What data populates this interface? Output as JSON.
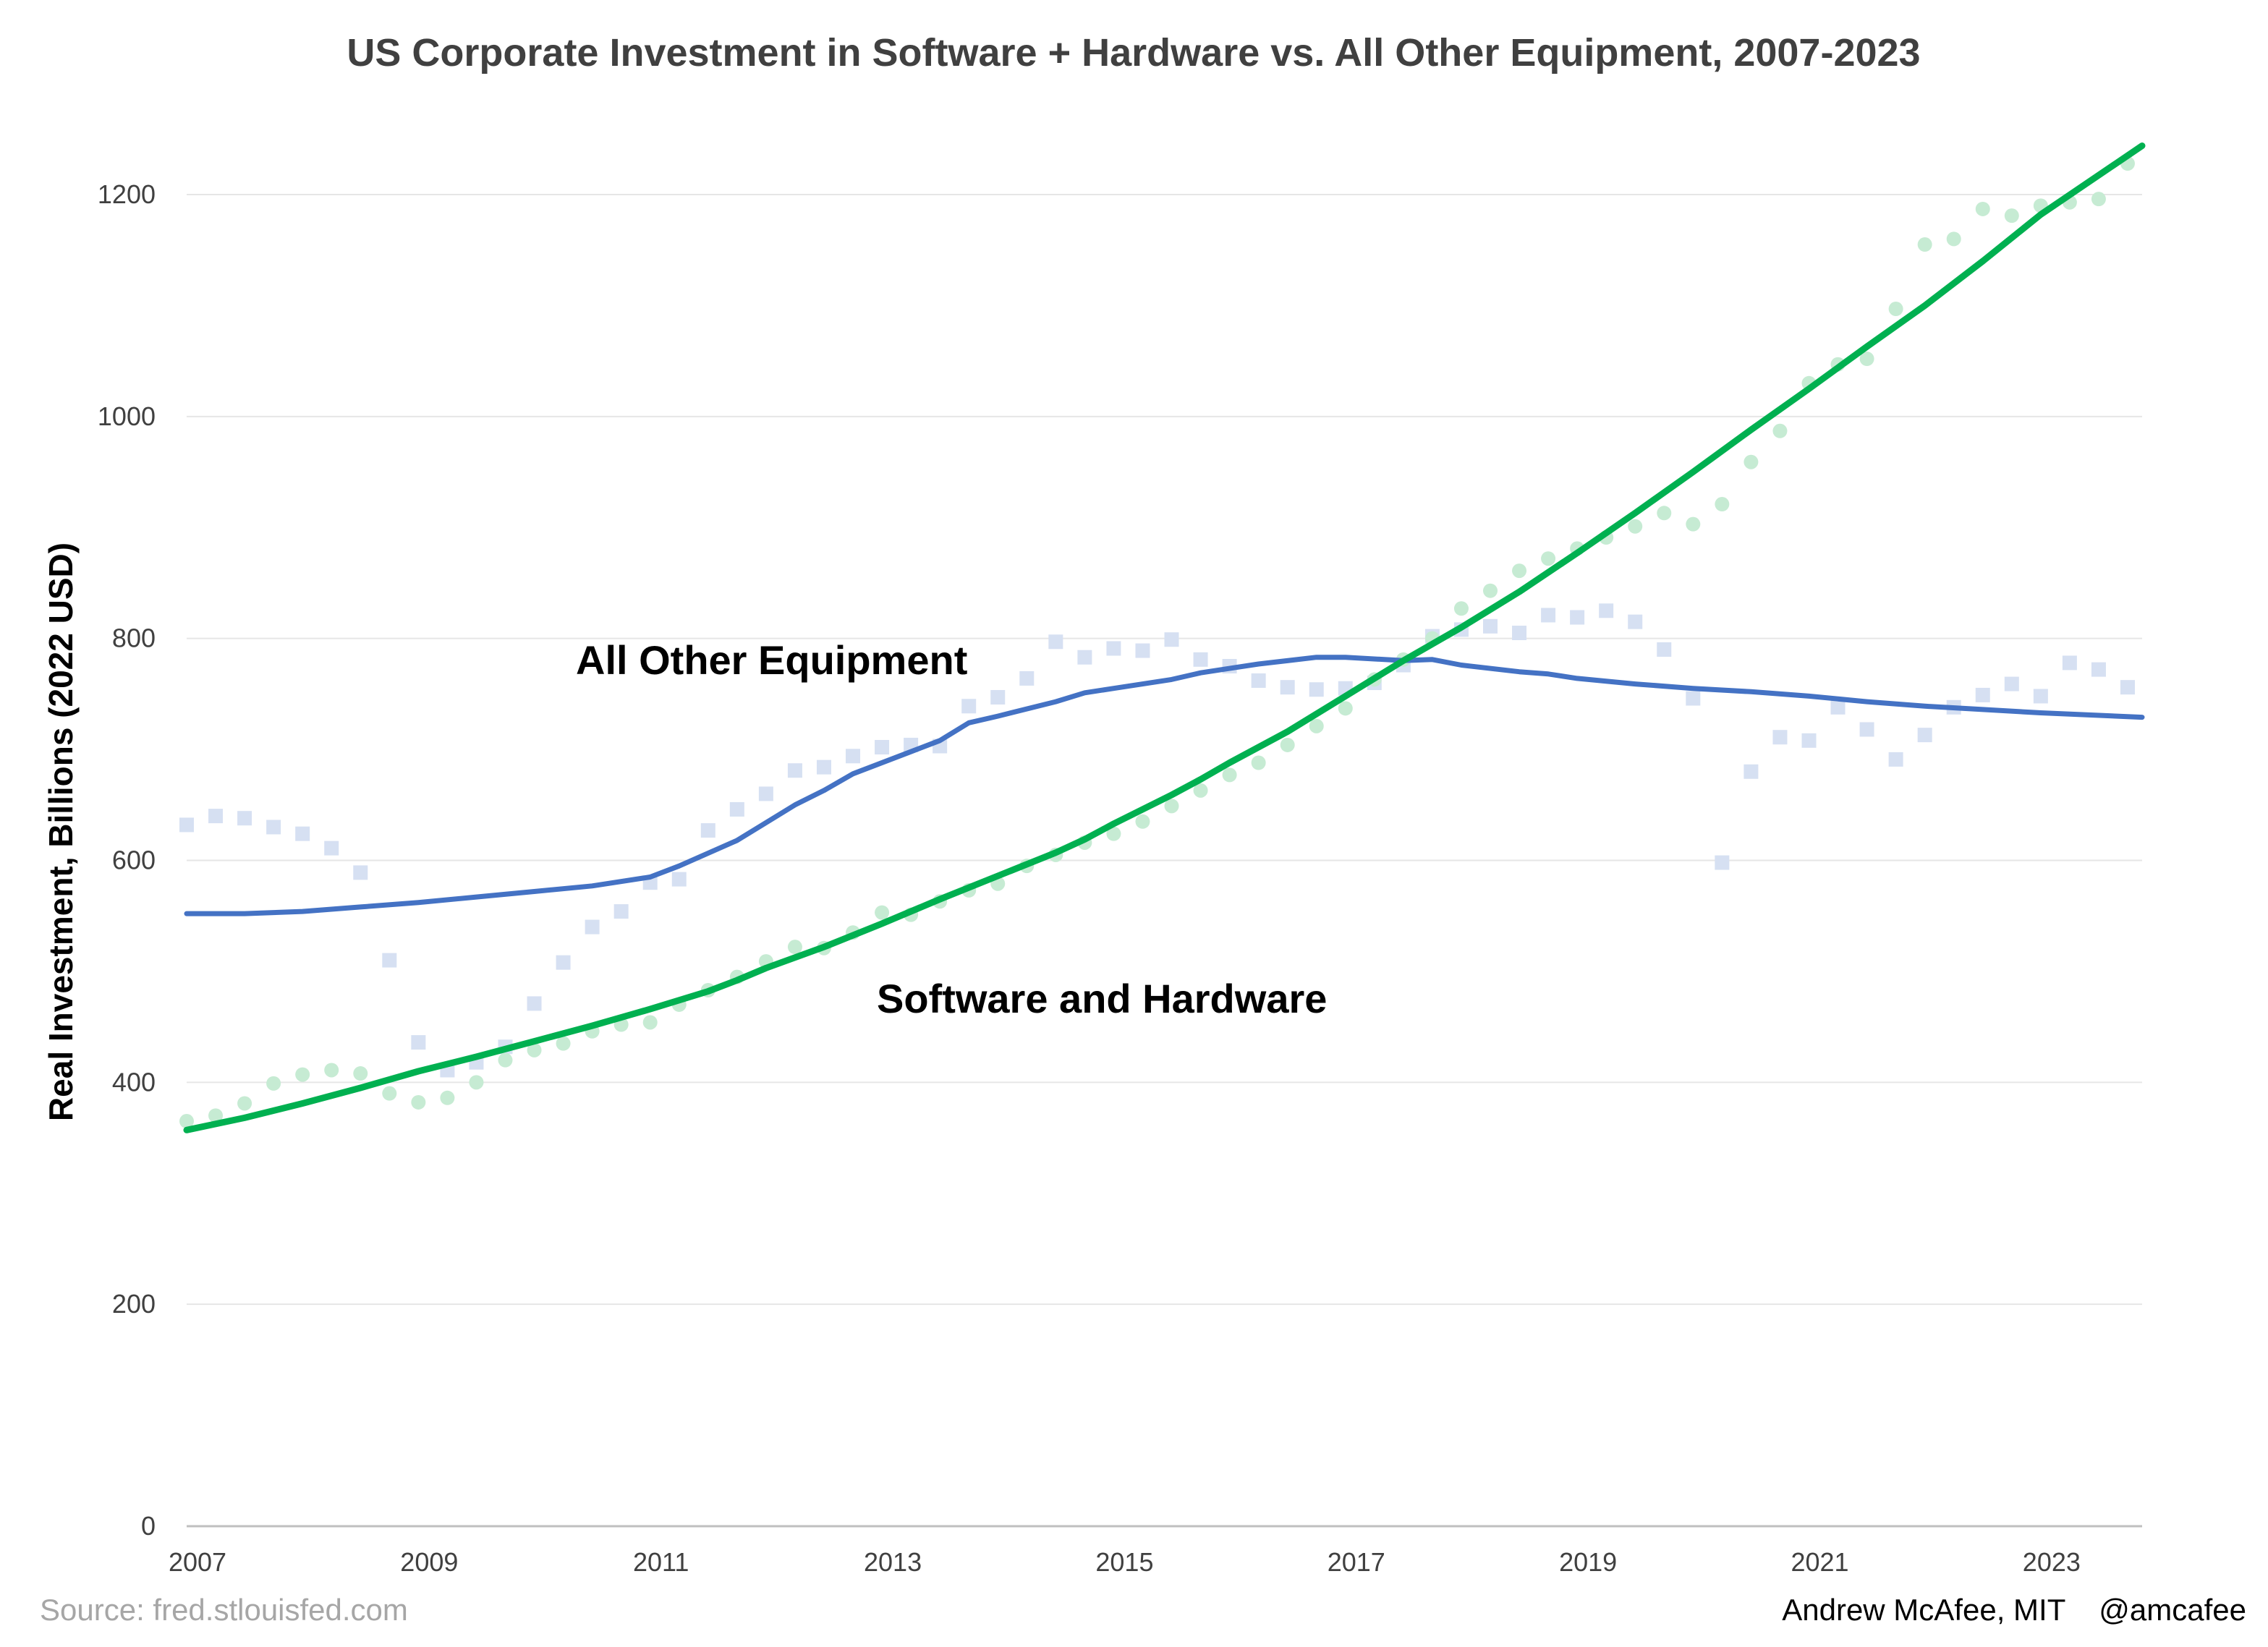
{
  "chart_data": {
    "type": "scatter",
    "title": "US Corporate Investment in Software + Hardware vs. All Other Equipment, 2007-2023",
    "ylabel": "Real Investment, Billions (2022 USD)",
    "xlabel": "",
    "xlim": [
      2007,
      2023.875
    ],
    "ylim": [
      0,
      1280
    ],
    "yticks": [
      0,
      200,
      400,
      600,
      800,
      1000,
      1200
    ],
    "xticks": [
      "2007",
      "2009",
      "2011",
      "2013",
      "2015",
      "2017",
      "2019",
      "2021",
      "2023"
    ],
    "grid": "horizontal",
    "legend": "inline labels",
    "annotations": {
      "other_label": "All Other Equipment",
      "software_label": "Software and Hardware"
    },
    "source": "Source: fred.stlouisfed.com",
    "credit": "Andrew McAfee, MIT    @amcafee",
    "series": [
      {
        "name": "All Other Equipment",
        "color": "#4472c4",
        "point_color": "#d6e0f2",
        "marker": "square",
        "quarterly": [
          632,
          640,
          638,
          630,
          624,
          611,
          589,
          510,
          436,
          411,
          418,
          432,
          471,
          508,
          540,
          554,
          580,
          583,
          627,
          646,
          660,
          681,
          684,
          694,
          702,
          704,
          703,
          739,
          747,
          764,
          797,
          783,
          791,
          789,
          799,
          781,
          775,
          762,
          756,
          754,
          755,
          760,
          776,
          802,
          808,
          811,
          805,
          821,
          819,
          825,
          815,
          790,
          746,
          598,
          680,
          711,
          708,
          738,
          718,
          691,
          713,
          738,
          749,
          759,
          748,
          778,
          772,
          756
        ],
        "trend": [
          [
            2007.0,
            552
          ],
          [
            2007.5,
            552
          ],
          [
            2008.0,
            554
          ],
          [
            2008.5,
            558
          ],
          [
            2009.0,
            562
          ],
          [
            2009.5,
            567
          ],
          [
            2010.0,
            572
          ],
          [
            2010.5,
            577
          ],
          [
            2011.0,
            585
          ],
          [
            2011.25,
            595
          ],
          [
            2011.75,
            618
          ],
          [
            2012.25,
            650
          ],
          [
            2012.5,
            663
          ],
          [
            2012.75,
            678
          ],
          [
            2013.25,
            698
          ],
          [
            2013.5,
            708
          ],
          [
            2013.75,
            724
          ],
          [
            2014.0,
            730
          ],
          [
            2014.5,
            743
          ],
          [
            2014.75,
            751
          ],
          [
            2015.0,
            755
          ],
          [
            2015.5,
            763
          ],
          [
            2015.75,
            769
          ],
          [
            2016.0,
            773
          ],
          [
            2016.25,
            777
          ],
          [
            2016.75,
            783
          ],
          [
            2017.0,
            783
          ],
          [
            2017.5,
            780
          ],
          [
            2017.75,
            781
          ],
          [
            2018.0,
            776
          ],
          [
            2018.5,
            770
          ],
          [
            2018.75,
            768
          ],
          [
            2019.0,
            764
          ],
          [
            2019.5,
            759
          ],
          [
            2020.0,
            755
          ],
          [
            2020.5,
            752
          ],
          [
            2021.0,
            748
          ],
          [
            2021.5,
            743
          ],
          [
            2022.0,
            739
          ],
          [
            2022.5,
            736
          ],
          [
            2023.0,
            733
          ],
          [
            2023.875,
            729
          ]
        ]
      },
      {
        "name": "Software and Hardware",
        "color": "#00b050",
        "point_color": "#c6ebd3",
        "marker": "circle",
        "quarterly": [
          365,
          370,
          381,
          399,
          407,
          411,
          408,
          390,
          382,
          386,
          400,
          420,
          429,
          435,
          446,
          452,
          454,
          470,
          483,
          495,
          509,
          522,
          521,
          535,
          553,
          551,
          563,
          573,
          579,
          595,
          605,
          616,
          624,
          635,
          649,
          663,
          677,
          688,
          704,
          721,
          737,
          763,
          781,
          800,
          827,
          843,
          861,
          872,
          881,
          891,
          901,
          913,
          903,
          921,
          959,
          987,
          1030,
          1047,
          1052,
          1097,
          1155,
          1160,
          1187,
          1181,
          1190,
          1193,
          1196,
          1228
        ],
        "trend": [
          [
            2007.0,
            357
          ],
          [
            2007.5,
            368
          ],
          [
            2008.0,
            381
          ],
          [
            2008.5,
            395
          ],
          [
            2009.0,
            410
          ],
          [
            2009.5,
            423
          ],
          [
            2010.0,
            437
          ],
          [
            2010.5,
            451
          ],
          [
            2011.0,
            466
          ],
          [
            2011.5,
            482
          ],
          [
            2011.75,
            492
          ],
          [
            2012.0,
            503
          ],
          [
            2012.5,
            522
          ],
          [
            2013.0,
            543
          ],
          [
            2013.5,
            565
          ],
          [
            2014.0,
            586
          ],
          [
            2014.5,
            607
          ],
          [
            2014.75,
            619
          ],
          [
            2015.0,
            633
          ],
          [
            2015.5,
            659
          ],
          [
            2015.75,
            673
          ],
          [
            2016.0,
            688
          ],
          [
            2016.5,
            716
          ],
          [
            2017.0,
            748
          ],
          [
            2017.5,
            780
          ],
          [
            2018.0,
            810
          ],
          [
            2018.5,
            842
          ],
          [
            2019.0,
            877
          ],
          [
            2019.5,
            913
          ],
          [
            2020.0,
            950
          ],
          [
            2020.5,
            988
          ],
          [
            2021.0,
            1025
          ],
          [
            2021.5,
            1063
          ],
          [
            2022.0,
            1100
          ],
          [
            2022.5,
            1140
          ],
          [
            2023.0,
            1182
          ],
          [
            2023.875,
            1244
          ]
        ]
      }
    ]
  }
}
